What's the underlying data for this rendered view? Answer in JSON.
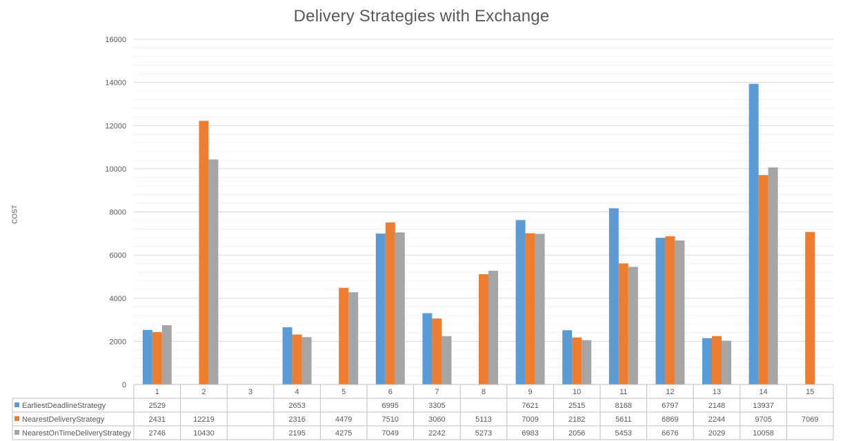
{
  "chart_data": {
    "type": "bar",
    "title": "Delivery Strategies with Exchange",
    "xlabel": "",
    "ylabel": "COST",
    "ylim": [
      0,
      16000
    ],
    "yticks": [
      0,
      2000,
      4000,
      6000,
      8000,
      10000,
      12000,
      14000,
      16000
    ],
    "grid": true,
    "legend": "data-table",
    "categories": [
      "1",
      "2",
      "3",
      "4",
      "5",
      "6",
      "7",
      "8",
      "9",
      "10",
      "11",
      "12",
      "13",
      "14",
      "15"
    ],
    "series": [
      {
        "name": "EarliestDeadlineStrategy",
        "color": "#5b9bd5",
        "values": [
          2529,
          null,
          null,
          2653,
          null,
          6995,
          3305,
          null,
          7621,
          2515,
          8168,
          6797,
          2148,
          13937,
          null
        ]
      },
      {
        "name": "NearestDeliveryStrategy",
        "color": "#ed7d31",
        "values": [
          2431,
          12219,
          null,
          2316,
          4479,
          7510,
          3060,
          5113,
          7009,
          2182,
          5611,
          6869,
          2244,
          9705,
          7069
        ]
      },
      {
        "name": "NearestOnTimeDeliveryStrategy",
        "color": "#a5a5a5",
        "values": [
          2746,
          10430,
          null,
          2195,
          4275,
          7049,
          2242,
          5273,
          6983,
          2056,
          5453,
          6676,
          2029,
          10058,
          null
        ]
      }
    ]
  }
}
